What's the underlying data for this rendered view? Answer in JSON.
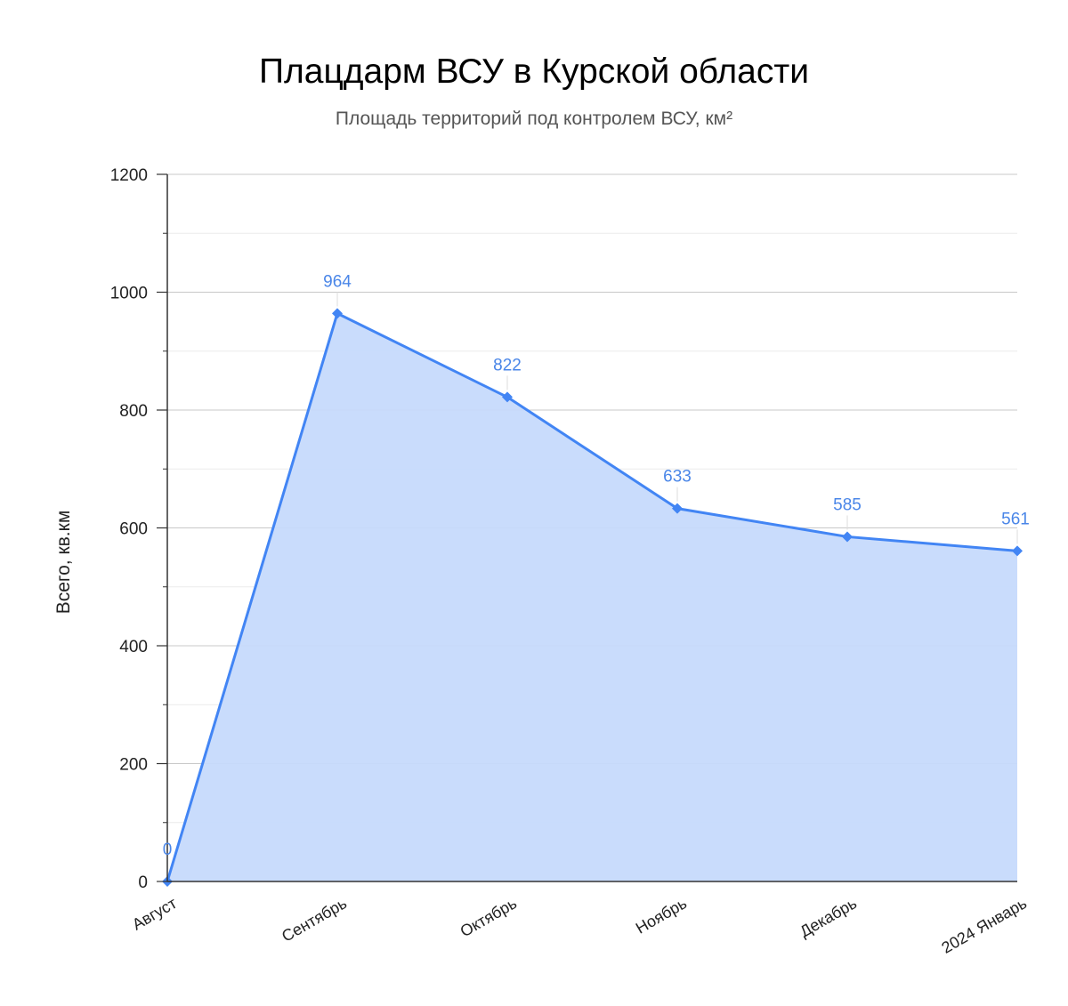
{
  "chart_data": {
    "type": "area",
    "title": "Плацдарм ВСУ в Курской области",
    "subtitle": "Площадь территорий под контролем ВСУ, км²",
    "xlabel": "",
    "ylabel": "Всего, кв.км",
    "categories": [
      "Август",
      "Сентябрь",
      "Октябрь",
      "Ноябрь",
      "Декабрь",
      "2024 Январь"
    ],
    "series": [
      {
        "values": [
          0,
          964,
          822,
          633,
          585,
          561
        ]
      }
    ],
    "data_labels": [
      "0",
      "964",
      "822",
      "633",
      "585",
      "561"
    ],
    "ylim": [
      0,
      1200
    ],
    "yticks": [
      0,
      200,
      400,
      600,
      800,
      1000,
      1200
    ],
    "grid": true,
    "legend": "none",
    "colors": {
      "line": "#4285f4",
      "fill": "#c6dafc",
      "label": "#4a86e8",
      "grid_major": "#c8c8c8",
      "grid_minor": "#ececec",
      "axis": "#333333"
    }
  }
}
